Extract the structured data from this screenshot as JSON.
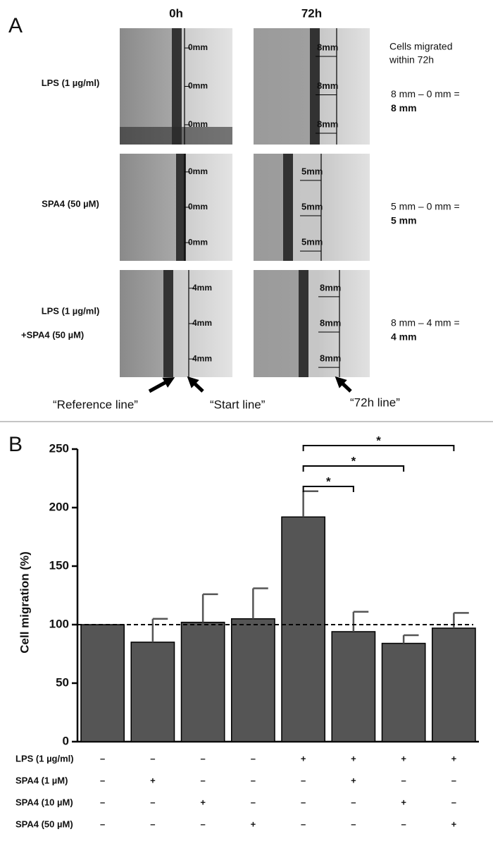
{
  "panel_a": {
    "label": "A",
    "columns": [
      "0h",
      "72h"
    ],
    "note": [
      "Cells migrated",
      "within 72h"
    ],
    "rows": [
      {
        "label": [
          "LPS (1 µg/ml)"
        ],
        "marks_0h": [
          "0mm",
          "0mm",
          "0mm"
        ],
        "marks_72h": [
          "8mm",
          "8mm",
          "8mm"
        ],
        "equation": "8 mm – 0 mm =",
        "result": "8 mm"
      },
      {
        "label": [
          "SPA4 (50 µM)"
        ],
        "marks_0h": [
          "0mm",
          "0mm",
          "0mm"
        ],
        "marks_72h": [
          "5mm",
          "5mm",
          "5mm"
        ],
        "equation": "5 mm – 0 mm =",
        "result": "5 mm"
      },
      {
        "label": [
          "LPS (1 µg/ml)",
          "+SPA4 (50 µM)"
        ],
        "marks_0h": [
          "4mm",
          "4mm",
          "4mm"
        ],
        "marks_72h": [
          "8mm",
          "8mm",
          "8mm"
        ],
        "equation": "8 mm – 4 mm =",
        "result": "4 mm"
      }
    ],
    "arrows": [
      "“Reference line”",
      "“Start line”",
      "“72h line”"
    ]
  },
  "chart_data": {
    "type": "bar",
    "panel_label": "B",
    "ylabel": "Cell migration (%)",
    "values": [
      100,
      85,
      102,
      105,
      192,
      94,
      84,
      97
    ],
    "errors": [
      null,
      20,
      24,
      26,
      22,
      17,
      7,
      13
    ],
    "color": "#555555",
    "ylim": [
      0,
      250
    ],
    "yticks": [
      0,
      50,
      100,
      150,
      200,
      250
    ],
    "reference_line": 100,
    "significance": [
      {
        "from": 4,
        "to": 5,
        "label": "*"
      },
      {
        "from": 4,
        "to": 6,
        "label": "*"
      },
      {
        "from": 4,
        "to": 7,
        "label": "*"
      }
    ],
    "conditions": [
      {
        "name": "LPS (1 µg/ml)",
        "signs": [
          "–",
          "–",
          "–",
          "–",
          "+",
          "+",
          "+",
          "+"
        ]
      },
      {
        "name": "SPA4 (1 µM)",
        "signs": [
          "–",
          "+",
          "–",
          "–",
          "–",
          "+",
          "–",
          "–"
        ]
      },
      {
        "name": "SPA4 (10 µM)",
        "signs": [
          "–",
          "–",
          "+",
          "–",
          "–",
          "–",
          "+",
          "–"
        ]
      },
      {
        "name": "SPA4 (50 µM)",
        "signs": [
          "–",
          "–",
          "–",
          "+",
          "–",
          "–",
          "–",
          "+"
        ]
      }
    ]
  }
}
